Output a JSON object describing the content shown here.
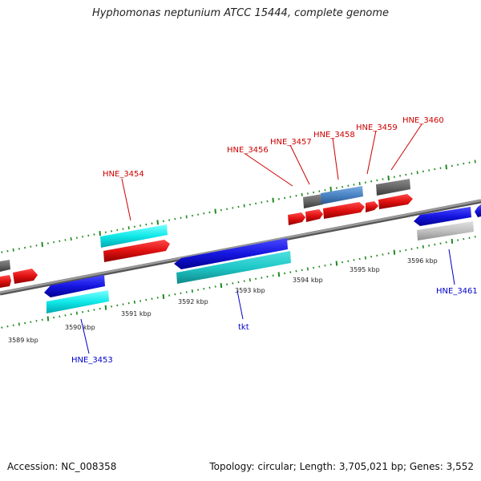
{
  "title": "Hyphomonas neptunium ATCC 15444, complete genome",
  "footer": {
    "accession": "Accession: NC_008358",
    "summary": "Topology: circular; Length: 3,705,021 bp; Genes: 3,552"
  },
  "colors": {
    "backbone": "#8a8a8a",
    "tick": "#1f8a1f",
    "red": "#e01010",
    "blue": "#1515e0",
    "cyan": "#10e8e8",
    "teal": "#20c8c8",
    "gray": "#666666",
    "lightgray": "#c0c0c0",
    "steel": "#4a84c4",
    "label_red": "#cc0000",
    "label_blue": "#0000cc"
  },
  "ruler": {
    "unit": "kbp",
    "ticks": [
      "3589 kbp",
      "3590 kbp",
      "3591 kbp",
      "3592 kbp",
      "3593 kbp",
      "3594 kbp",
      "3595 kbp",
      "3596 kbp"
    ]
  },
  "genes": [
    {
      "label": "",
      "strand": "+",
      "color": "gray",
      "track": "plus_outer"
    },
    {
      "label": "",
      "strand": "+",
      "color": "red",
      "track": "plus_inner"
    },
    {
      "label": "",
      "strand": "+",
      "color": "red",
      "track": "plus_inner"
    },
    {
      "label": "HNE_3453",
      "strand": "-",
      "color": "blue",
      "track": "minus_inner"
    },
    {
      "label": "HNE_3453",
      "strand": "-",
      "color": "cyan",
      "track": "minus_outer"
    },
    {
      "label": "HNE_3454",
      "strand": "+",
      "color": "cyan",
      "track": "plus_outer"
    },
    {
      "label": "HNE_3454",
      "strand": "+",
      "color": "red",
      "track": "plus_inner"
    },
    {
      "label": "tkt",
      "strand": "-",
      "color": "blue",
      "track": "minus_inner"
    },
    {
      "label": "tkt",
      "strand": "-",
      "color": "teal",
      "track": "minus_outer"
    },
    {
      "label": "HNE_3456",
      "strand": "+",
      "color": "red",
      "track": "plus_inner"
    },
    {
      "label": "HNE_3457",
      "strand": "+",
      "color": "red",
      "track": "plus_inner"
    },
    {
      "label": "HNE_3457",
      "strand": "+",
      "color": "gray",
      "track": "plus_outer"
    },
    {
      "label": "HNE_3458",
      "strand": "+",
      "color": "red",
      "track": "plus_inner"
    },
    {
      "label": "HNE_3458",
      "strand": "+",
      "color": "steel",
      "track": "plus_outer"
    },
    {
      "label": "HNE_3459",
      "strand": "+",
      "color": "red",
      "track": "plus_inner"
    },
    {
      "label": "HNE_3460",
      "strand": "+",
      "color": "red",
      "track": "plus_inner"
    },
    {
      "label": "HNE_3460",
      "strand": "+",
      "color": "gray",
      "track": "plus_outer"
    },
    {
      "label": "HNE_3461",
      "strand": "-",
      "color": "blue",
      "track": "minus_inner"
    },
    {
      "label": "HNE_3461",
      "strand": "-",
      "color": "lightgray",
      "track": "minus_outer"
    },
    {
      "label": "",
      "strand": "-",
      "color": "blue",
      "track": "minus_inner"
    }
  ],
  "gene_labels": {
    "red": [
      "HNE_3454",
      "HNE_3456",
      "HNE_3457",
      "HNE_3458",
      "HNE_3459",
      "HNE_3460"
    ],
    "blue": [
      "HNE_3453",
      "tkt",
      "HNE_3461"
    ]
  }
}
